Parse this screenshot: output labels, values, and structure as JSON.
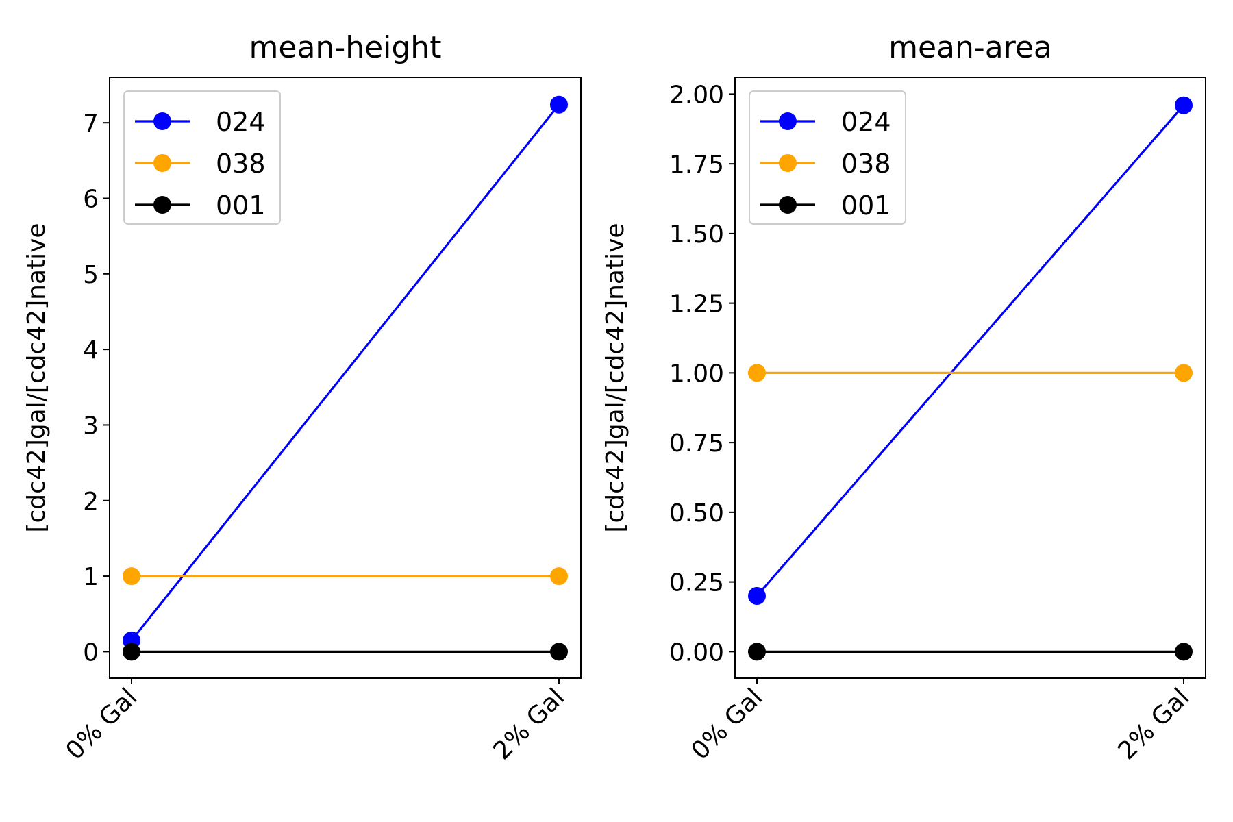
{
  "chart_data": [
    {
      "type": "line",
      "title": "mean-height",
      "xlabel": "",
      "ylabel": "[cdc42]gal/[cdc42]native",
      "categories": [
        "0% Gal",
        "2% Gal"
      ],
      "ylim": [
        -0.35,
        7.6
      ],
      "yticks": [
        0,
        1,
        2,
        3,
        4,
        5,
        6,
        7
      ],
      "ytick_labels": [
        "0",
        "1",
        "2",
        "3",
        "4",
        "5",
        "6",
        "7"
      ],
      "legend_position": "upper-left",
      "grid": false,
      "series": [
        {
          "name": "024",
          "color": "#0000ff",
          "values": [
            0.15,
            7.24
          ]
        },
        {
          "name": "038",
          "color": "#ffa500",
          "values": [
            1.0,
            1.0
          ]
        },
        {
          "name": "001",
          "color": "#000000",
          "values": [
            0.0,
            0.0
          ]
        }
      ]
    },
    {
      "type": "line",
      "title": "mean-area",
      "xlabel": "",
      "ylabel": "[cdc42]gal/[cdc42]native",
      "categories": [
        "0% Gal",
        "2% Gal"
      ],
      "ylim": [
        -0.095,
        2.06
      ],
      "yticks": [
        0,
        0.25,
        0.5,
        0.75,
        1.0,
        1.25,
        1.5,
        1.75,
        2.0
      ],
      "ytick_labels": [
        "0.00",
        "0.25",
        "0.50",
        "0.75",
        "1.00",
        "1.25",
        "1.50",
        "1.75",
        "2.00"
      ],
      "legend_position": "upper-left",
      "grid": false,
      "series": [
        {
          "name": "024",
          "color": "#0000ff",
          "values": [
            0.2,
            1.96
          ]
        },
        {
          "name": "038",
          "color": "#ffa500",
          "values": [
            1.0,
            1.0
          ]
        },
        {
          "name": "001",
          "color": "#000000",
          "values": [
            0.0,
            0.0
          ]
        }
      ]
    }
  ]
}
